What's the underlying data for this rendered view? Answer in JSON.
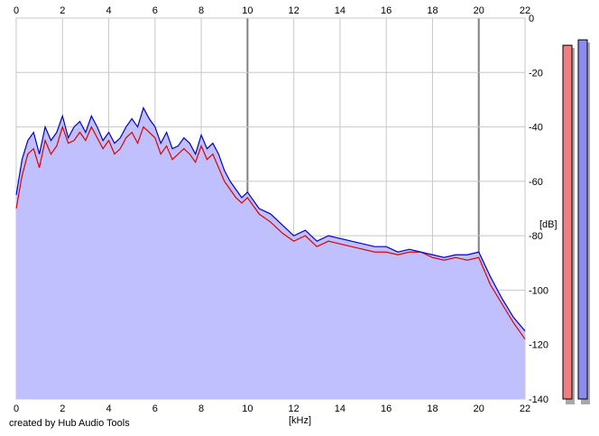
{
  "footer": {
    "credit": "created by Hub Audio Tools"
  },
  "colors": {
    "background": "#ffffff",
    "plot_bg": "#ffffff",
    "grid": "#c8c8c8",
    "major_grid": "#808080",
    "fill": "#c0c0ff",
    "left_channel": "#e00000",
    "right_channel": "#0000c8",
    "meter_left": "#f08080",
    "meter_right": "#8c8cf0"
  },
  "meters": {
    "left_db": -10,
    "right_db": -8
  },
  "chart_data": {
    "type": "area",
    "title": "",
    "xlabel": "[kHz]",
    "ylabel": "[dB]",
    "xlim": [
      0,
      22
    ],
    "ylim": [
      -140,
      0
    ],
    "x_ticks": [
      "0",
      "2",
      "4",
      "6",
      "8",
      "10",
      "12",
      "14",
      "16",
      "18",
      "20",
      "22"
    ],
    "y_ticks": [
      "0",
      "-20",
      "-40",
      "-60",
      "-80",
      "-100",
      "-120",
      "-140"
    ],
    "grid": true,
    "legend": "none",
    "x": [
      0,
      0.25,
      0.5,
      0.75,
      1,
      1.25,
      1.5,
      1.75,
      2,
      2.25,
      2.5,
      2.75,
      3,
      3.25,
      3.5,
      3.75,
      4,
      4.25,
      4.5,
      4.75,
      5,
      5.25,
      5.5,
      5.75,
      6,
      6.25,
      6.5,
      6.75,
      7,
      7.25,
      7.5,
      7.75,
      8,
      8.25,
      8.5,
      8.75,
      9,
      9.25,
      9.5,
      9.75,
      10,
      10.5,
      11,
      11.5,
      12,
      12.5,
      13,
      13.5,
      14,
      14.5,
      15,
      15.5,
      16,
      16.5,
      17,
      17.5,
      18,
      18.5,
      19,
      19.5,
      20,
      20.5,
      21,
      21.5,
      22
    ],
    "series": [
      {
        "color": "#e00000",
        "values": [
          -70,
          -58,
          -50,
          -48,
          -55,
          -45,
          -50,
          -47,
          -40,
          -46,
          -45,
          -42,
          -45,
          -40,
          -44,
          -48,
          -45,
          -50,
          -48,
          -44,
          -42,
          -46,
          -40,
          -42,
          -44,
          -50,
          -47,
          -52,
          -50,
          -48,
          -50,
          -53,
          -47,
          -52,
          -50,
          -55,
          -60,
          -63,
          -66,
          -68,
          -66,
          -72,
          -75,
          -79,
          -82,
          -80,
          -84,
          -82,
          -83,
          -84,
          -85,
          -86,
          -86,
          -87,
          -86,
          -86,
          -88,
          -89,
          -88,
          -89,
          -88,
          -98,
          -105,
          -112,
          -118
        ]
      },
      {
        "color": "#0000c8",
        "values": [
          -65,
          -52,
          -45,
          -42,
          -50,
          -40,
          -45,
          -42,
          -36,
          -44,
          -40,
          -38,
          -42,
          -36,
          -40,
          -45,
          -42,
          -46,
          -44,
          -40,
          -37,
          -40,
          -33,
          -37,
          -40,
          -46,
          -42,
          -48,
          -47,
          -44,
          -46,
          -50,
          -43,
          -48,
          -46,
          -50,
          -56,
          -60,
          -63,
          -66,
          -64,
          -70,
          -72,
          -76,
          -80,
          -78,
          -82,
          -80,
          -81,
          -82,
          -83,
          -84,
          -84,
          -86,
          -85,
          -86,
          -87,
          -88,
          -87,
          -87,
          -86,
          -95,
          -103,
          -110,
          -115
        ]
      }
    ]
  }
}
